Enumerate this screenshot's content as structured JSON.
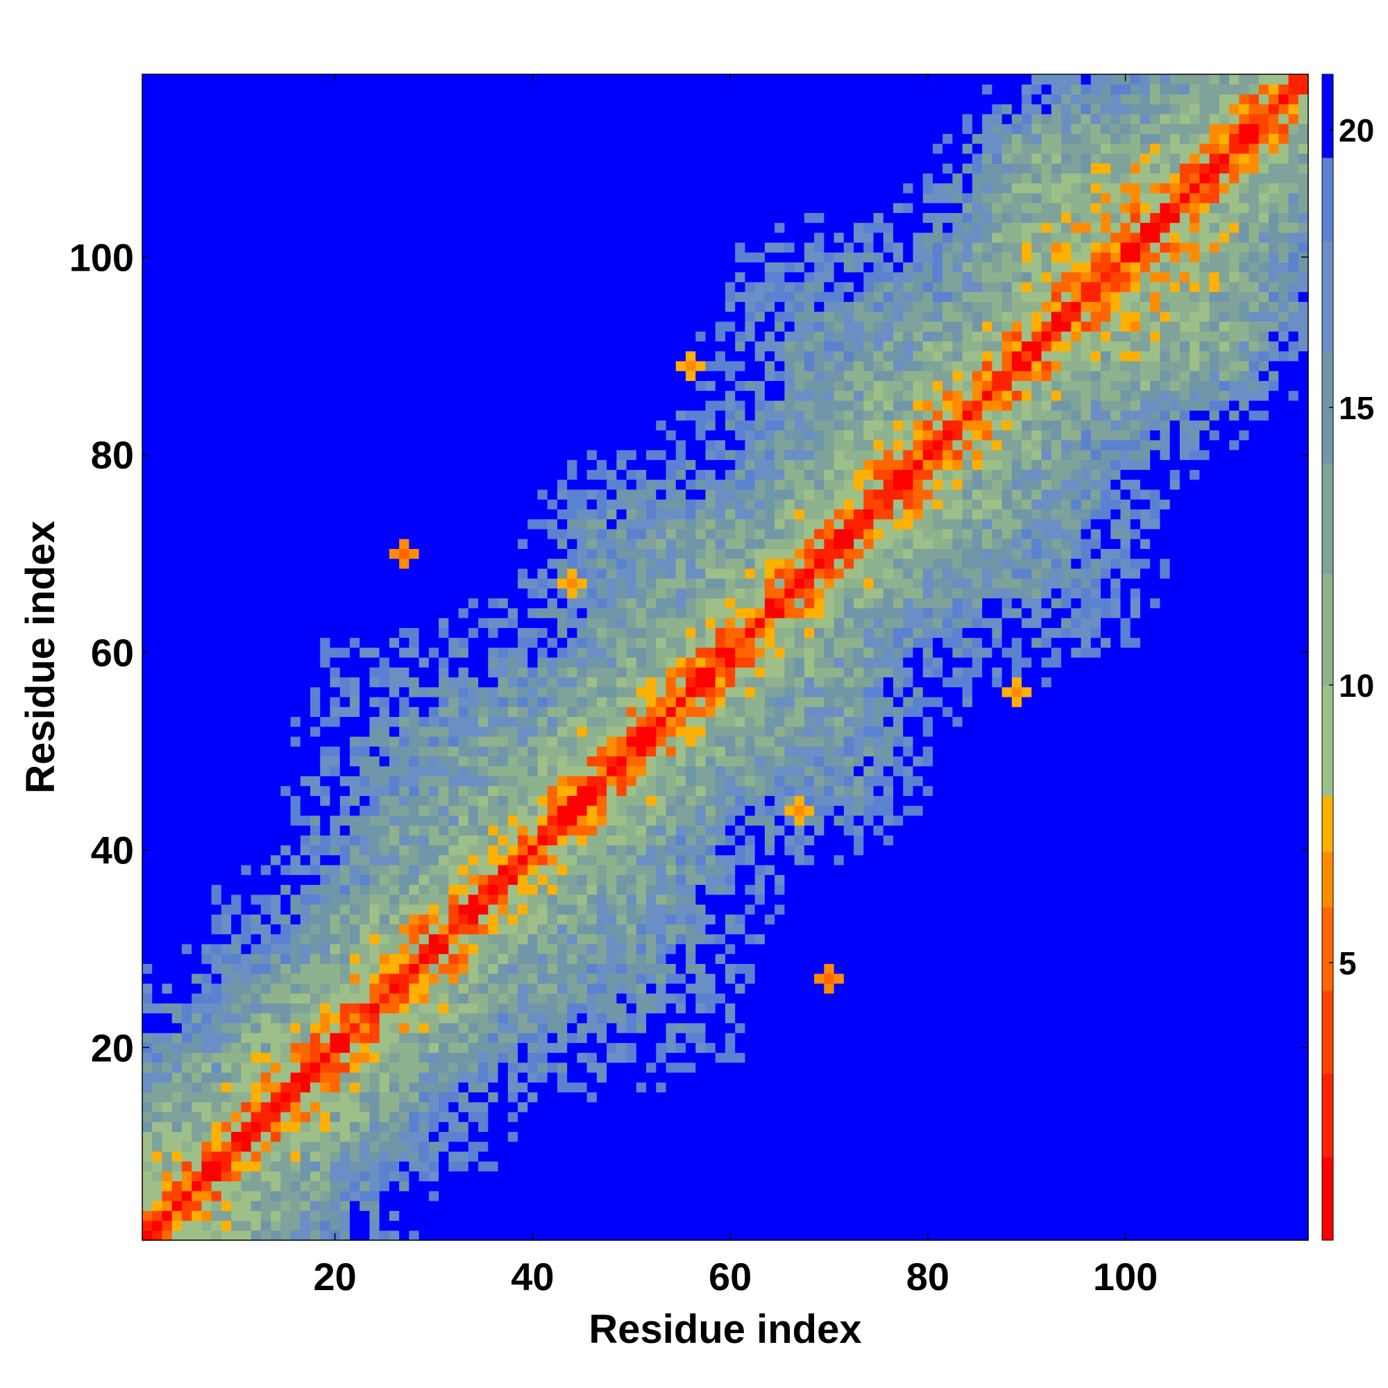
{
  "chart_data": {
    "type": "heatmap",
    "title": "",
    "xlabel": "Residue index",
    "ylabel": "Residue index",
    "n_residues": 118,
    "xlim": [
      0.5,
      118.5
    ],
    "ylim": [
      0.5,
      118.5
    ],
    "x_ticks": [
      20,
      40,
      60,
      80,
      100
    ],
    "y_ticks": [
      20,
      40,
      60,
      80,
      100
    ],
    "colorbar": {
      "range": [
        0,
        21
      ],
      "ticks": [
        5,
        10,
        15,
        20
      ],
      "levels": [
        {
          "max": 1.5,
          "color": "#ff0000"
        },
        {
          "max": 3.0,
          "color": "#ff2200"
        },
        {
          "max": 4.5,
          "color": "#ff4400"
        },
        {
          "max": 6.0,
          "color": "#ff6600"
        },
        {
          "max": 7.0,
          "color": "#ff8c00"
        },
        {
          "max": 8.0,
          "color": "#ffb000"
        },
        {
          "max": 10.0,
          "color": "#9ebf88"
        },
        {
          "max": 12.0,
          "color": "#8fb28e"
        },
        {
          "max": 14.0,
          "color": "#7fa29a"
        },
        {
          "max": 16.0,
          "color": "#7097a8"
        },
        {
          "max": 18.0,
          "color": "#6a8fc4"
        },
        {
          "max": 19.5,
          "color": "#5a82d0"
        },
        {
          "max": 21.0,
          "color": "#0000ff"
        }
      ]
    },
    "description_of_values": "symmetric residue-residue distance map: values near 0 along the diagonal (red), rising away from it, saturated >20 (blue)",
    "notable_contacts": [
      {
        "x": 56,
        "y": 89,
        "value": 6.5
      },
      {
        "x": 89,
        "y": 56,
        "value": 6.5
      },
      {
        "x": 17,
        "y": 19,
        "value": 5.5
      },
      {
        "x": 28,
        "y": 32,
        "value": 5.5
      },
      {
        "x": 70,
        "y": 27,
        "value": 6.0
      },
      {
        "x": 27,
        "y": 70,
        "value": 6.0
      },
      {
        "x": 67,
        "y": 44,
        "value": 6.5
      },
      {
        "x": 44,
        "y": 67,
        "value": 6.5
      }
    ]
  }
}
